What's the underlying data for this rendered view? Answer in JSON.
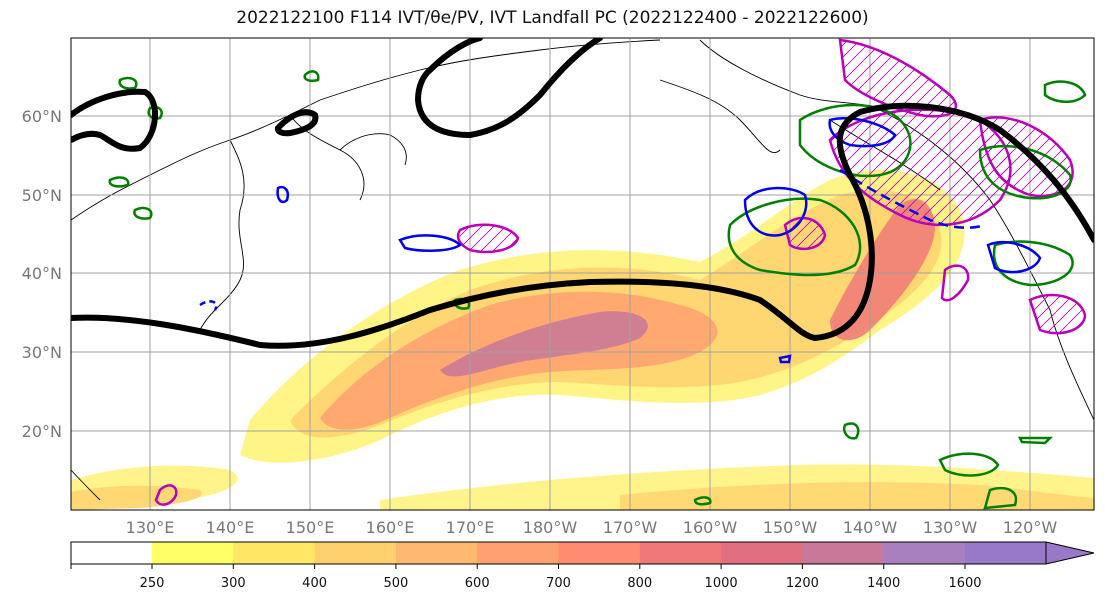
{
  "title": "2022122100 F114 IVT/θe/PV, IVT Landfall PC (2022122400 - 2022122600)",
  "map": {
    "lat_labels": [
      "60°N",
      "50°N",
      "40°N",
      "30°N",
      "20°N"
    ],
    "lon_labels": [
      "130°E",
      "140°E",
      "150°E",
      "160°E",
      "170°E",
      "180°W",
      "170°W",
      "160°W",
      "150°W",
      "140°W",
      "130°W",
      "120°W"
    ]
  },
  "colorbar": {
    "ticks": [
      "250",
      "300",
      "400",
      "500",
      "600",
      "700",
      "800",
      "1000",
      "1200",
      "1400",
      "1600"
    ],
    "colors": [
      "#ffff66",
      "#ffe866",
      "#ffd06e",
      "#ffb870",
      "#ffa070",
      "#ff8c70",
      "#f07878",
      "#e07080",
      "#c87898",
      "#a880c0",
      "#9878c8"
    ]
  },
  "contour_colors": {
    "pv": "#000000",
    "theta_e_blue": "#0000ee",
    "theta_e_green": "#008000",
    "landfall_pc": "#bb00bb"
  }
}
